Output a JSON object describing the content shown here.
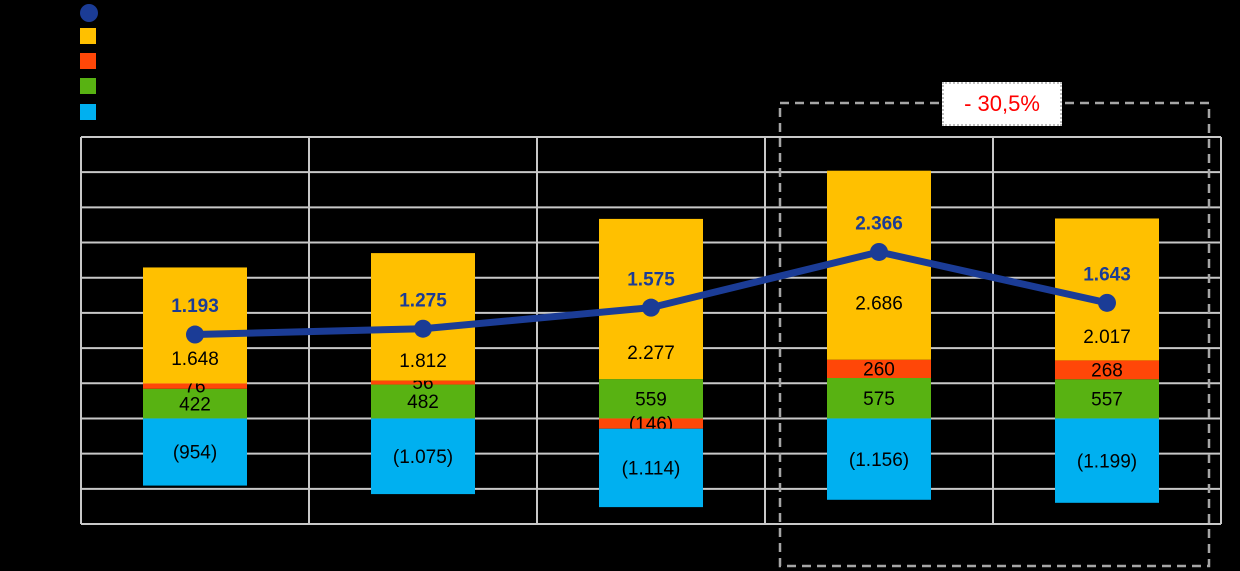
{
  "colors": {
    "background": "#000000",
    "grid": "#c8c8c8",
    "plot_border": "#c8c8c8",
    "dashed_box": "#a6a6a6",
    "annotation_text": "#ff0000",
    "annotation_box_bg": "#ffffff",
    "line_series": "#1b3c96",
    "line_value_label": "#1b3c96",
    "bar_value_label": "#000000",
    "orange_series": "#ffc000",
    "red_series": "#ff4708",
    "green_series": "#58b212",
    "lightblue_series": "#00b0f0"
  },
  "legend": {
    "items": [
      {
        "name": "line-series",
        "marker": "circle",
        "color": "#1b3c96",
        "label": ""
      },
      {
        "name": "orange-series",
        "marker": "square",
        "color": "#ffc000",
        "label": ""
      },
      {
        "name": "red-series",
        "marker": "square",
        "color": "#ff4708",
        "label": ""
      },
      {
        "name": "green-series",
        "marker": "square",
        "color": "#58b212",
        "label": ""
      },
      {
        "name": "lightblue-series",
        "marker": "square",
        "color": "#00b0f0",
        "label": ""
      }
    ]
  },
  "chart_data": {
    "type": "combo: stacked-bar + line",
    "categories": [
      "",
      "",
      "",
      "",
      ""
    ],
    "series": [
      {
        "name": "green-segment",
        "type": "bar",
        "color": "#58b212",
        "values": [
          422,
          482,
          559,
          575,
          557
        ],
        "labels": [
          "422",
          "482",
          "559",
          "575",
          "557"
        ]
      },
      {
        "name": "red-segment",
        "type": "bar",
        "color": "#ff4708",
        "values": [
          76,
          56,
          -146,
          260,
          268
        ],
        "labels": [
          "76",
          "56",
          "(146)",
          "260",
          "268"
        ]
      },
      {
        "name": "orange-segment",
        "type": "bar",
        "color": "#ffc000",
        "values": [
          1648,
          1812,
          2277,
          2686,
          2017
        ],
        "labels": [
          "1.648",
          "1.812",
          "2.277",
          "2.686",
          "2.017"
        ]
      },
      {
        "name": "lightblue-segment",
        "type": "bar",
        "color": "#00b0f0",
        "values": [
          -954,
          -1075,
          -1114,
          -1156,
          -1199
        ],
        "labels": [
          "(954)",
          "(1.075)",
          "(1.114)",
          "(1.156)",
          "(1.199)"
        ]
      },
      {
        "name": "line-series",
        "type": "line",
        "color": "#1b3c96",
        "values": [
          1193,
          1275,
          1575,
          2366,
          1643
        ],
        "labels": [
          "1.193",
          "1.275",
          "1.575",
          "2.366",
          "1.643"
        ]
      }
    ],
    "ylim": [
      -1500,
      4000
    ],
    "y_step": 500,
    "grid": true,
    "axis_tick_labels_visible": false,
    "legend_position": "top-left",
    "annotation": {
      "text": "- 30,5%",
      "color": "#ff0000",
      "applies_to": "last two categories",
      "box_style": "dashed-gray-rectangle"
    }
  }
}
